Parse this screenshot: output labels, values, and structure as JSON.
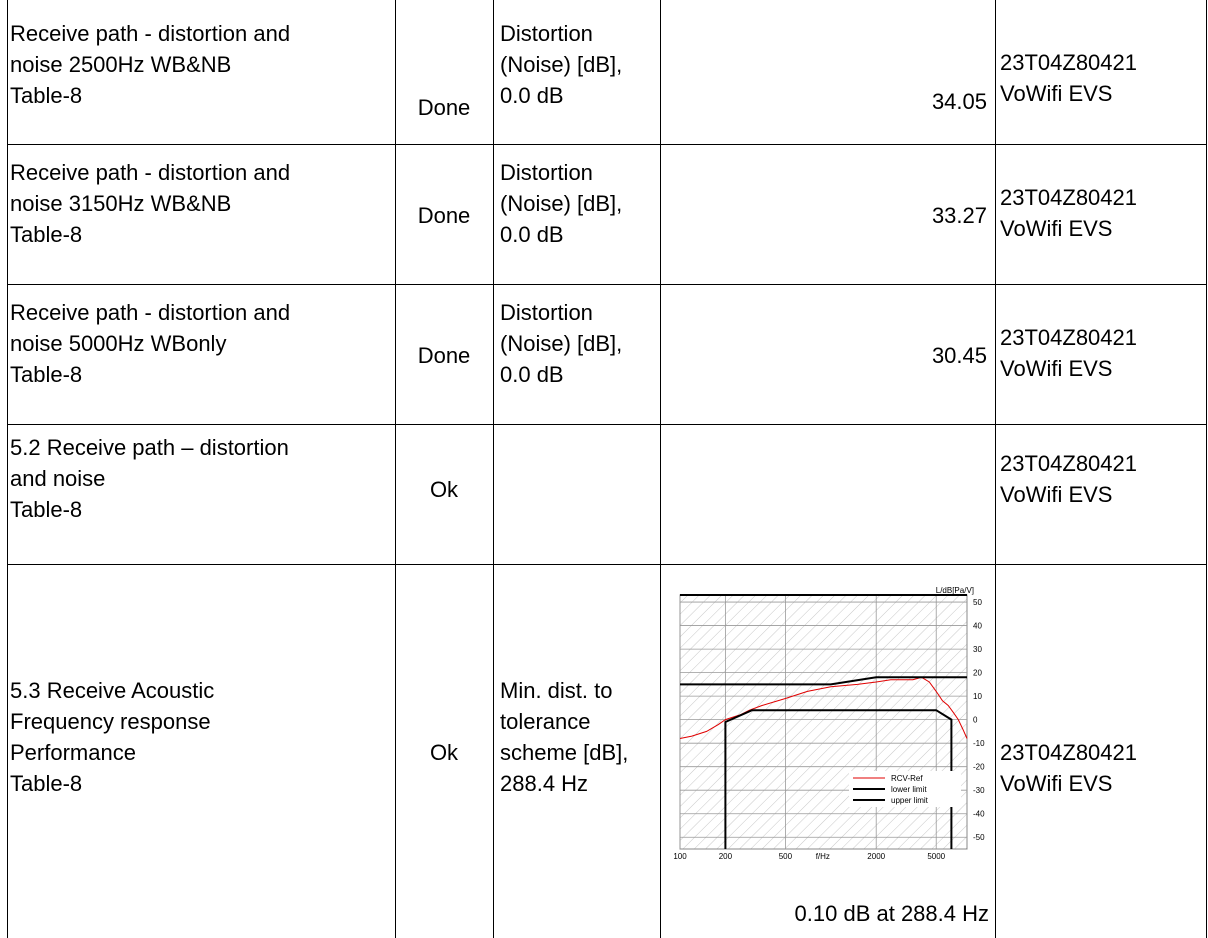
{
  "rows": [
    {
      "name": [
        "Receive path - distortion and",
        "noise 2500Hz WB&NB",
        "Table-8"
      ],
      "status": "Done",
      "measure": [
        "Distortion",
        "(Noise) [dB],",
        "0.0 dB"
      ],
      "value": "34.05",
      "id": [
        "23T04Z80421",
        "VoWifi EVS"
      ]
    },
    {
      "name": [
        "Receive path - distortion and",
        "noise 3150Hz WB&NB",
        "Table-8"
      ],
      "status": "Done",
      "measure": [
        "Distortion",
        "(Noise) [dB],",
        "0.0 dB"
      ],
      "value": "33.27",
      "id": [
        "23T04Z80421",
        "VoWifi EVS"
      ]
    },
    {
      "name": [
        "Receive path - distortion and",
        "noise 5000Hz WBonly",
        "Table-8"
      ],
      "status": "Done",
      "measure": [
        "Distortion",
        "(Noise) [dB],",
        "0.0 dB"
      ],
      "value": "30.45",
      "id": [
        "23T04Z80421",
        "VoWifi EVS"
      ]
    },
    {
      "name": [
        "5.2 Receive path – distortion",
        "and noise",
        "Table-8"
      ],
      "status": "Ok",
      "measure": [],
      "value": "",
      "id": [
        "23T04Z80421",
        "VoWifi EVS"
      ]
    },
    {
      "name": [
        "5.3 Receive Acoustic",
        "Frequency response",
        "Performance",
        "Table-8"
      ],
      "status": "Ok",
      "measure": [
        "Min. dist. to",
        "tolerance",
        "scheme [dB],",
        "288.4 Hz"
      ],
      "value": "0.10 dB at 288.4 Hz",
      "id": [
        "23T04Z80421",
        "VoWifi EVS"
      ]
    }
  ],
  "chart_data": {
    "type": "line",
    "xlabel": "f/Hz",
    "ylabel": "L/dB[Pa/V]",
    "x_scale": "log",
    "xlim": [
      100,
      8000
    ],
    "ylim": [
      -55,
      53
    ],
    "x_ticks": [
      100,
      200,
      500,
      2000,
      5000
    ],
    "y_ticks": [
      50,
      40,
      30,
      20,
      10,
      0,
      -10,
      -20,
      -30,
      -40,
      -50
    ],
    "legend": "bottom-right",
    "series": [
      {
        "name": "RCV-Ref",
        "color": "#e00000",
        "x": [
          100,
          120,
          150,
          180,
          200,
          250,
          288.4,
          350,
          500,
          700,
          1000,
          1500,
          2000,
          2500,
          3000,
          3500,
          4000,
          4500,
          5000,
          5500,
          6000,
          6500,
          7000,
          7500,
          8000
        ],
        "y": [
          -8,
          -7,
          -5,
          -2,
          0,
          2,
          4,
          6,
          9,
          12,
          14,
          15,
          16,
          17,
          17,
          17,
          18,
          16,
          12,
          8,
          6,
          3,
          0,
          -4,
          -8
        ]
      },
      {
        "name": "lower limit",
        "color": "#000000",
        "x": [
          200,
          200,
          300,
          500,
          5000,
          6300,
          6300
        ],
        "y": [
          -55,
          -1,
          4,
          4,
          4,
          0,
          -55
        ]
      },
      {
        "name": "upper limit",
        "color": "#000000",
        "x": [
          100,
          1000,
          2000,
          8000
        ],
        "y": [
          15,
          15,
          18,
          18
        ]
      }
    ],
    "top_line": 53
  }
}
